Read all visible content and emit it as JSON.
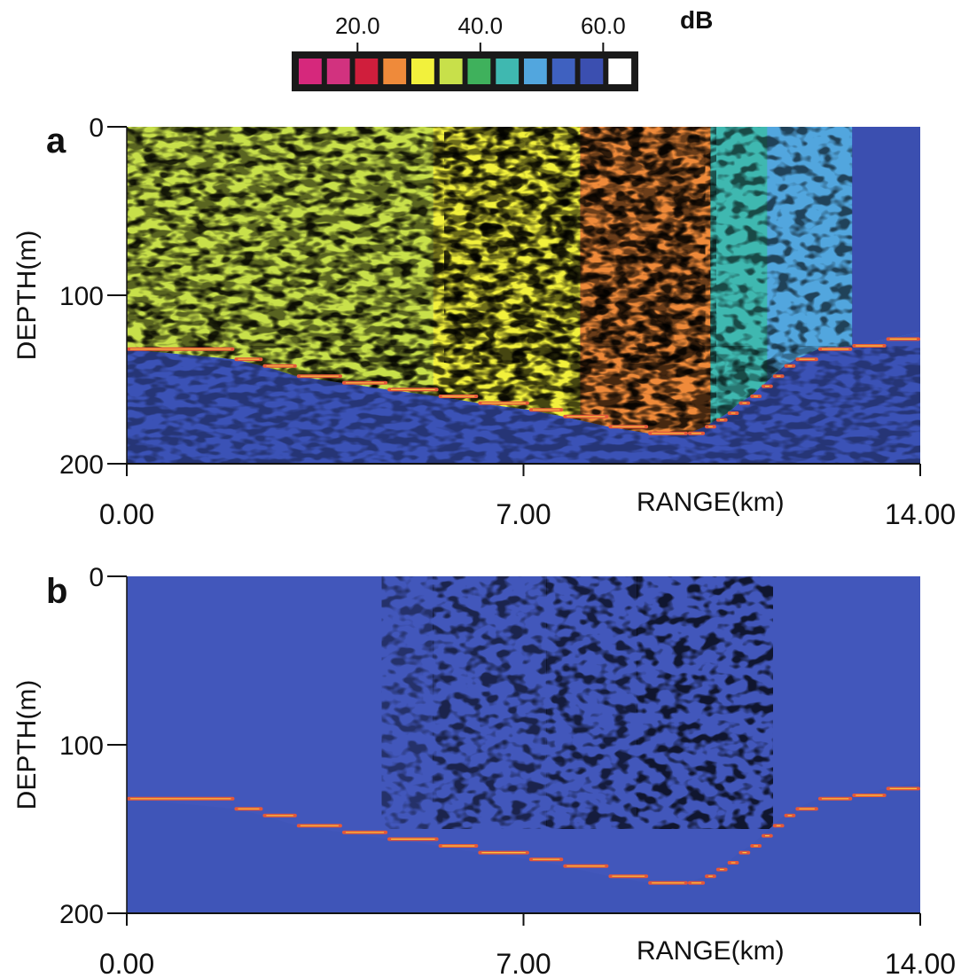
{
  "colorbar": {
    "unit": "dB",
    "tick_labels": [
      "20.0",
      "40.0",
      "60.0"
    ],
    "tick_values": [
      20,
      40,
      60
    ],
    "range": [
      10,
      65
    ],
    "swatches": [
      "#d6287c",
      "#d2327f",
      "#d01e3c",
      "#ef8a3a",
      "#f2f13c",
      "#c8e04a",
      "#3fb15c",
      "#3fb8b0",
      "#52a6de",
      "#3f61c0",
      "#3b4fb0",
      "#ffffff"
    ]
  },
  "chart_data": [
    {
      "type": "heatmap",
      "panel_label": "a",
      "xlabel": "RANGE(km)",
      "ylabel": "DEPTH(m)",
      "xlim": [
        0,
        14
      ],
      "ylim": [
        200,
        0
      ],
      "x_ticks": [
        "0.00",
        "7.00",
        "14.00"
      ],
      "y_ticks": [
        "0",
        "100",
        "200"
      ],
      "value_unit": "dB",
      "background_level_db": 55,
      "intensity_regions": [
        {
          "x": [
            0.0,
            1.8
          ],
          "level_db": 37
        },
        {
          "x": [
            1.8,
            5.4
          ],
          "level_db": 34
        },
        {
          "x": [
            5.4,
            8.0
          ],
          "level_db": 31
        },
        {
          "x": [
            8.0,
            10.3
          ],
          "level_db": 28
        },
        {
          "x": [
            10.3,
            11.3
          ],
          "level_db": 44
        },
        {
          "x": [
            11.3,
            12.8
          ],
          "level_db": 49
        },
        {
          "x": [
            12.8,
            13.2
          ],
          "level_db": 58
        }
      ],
      "bottom_profile": {
        "x": [
          0.0,
          1.9,
          2.4,
          3.0,
          3.8,
          4.6,
          5.5,
          6.2,
          7.1,
          7.7,
          8.5,
          9.2,
          9.9,
          10.2,
          10.4,
          10.6,
          10.8,
          11.0,
          11.2,
          11.4,
          11.6,
          11.8,
          12.2,
          12.8,
          13.4,
          14.0
        ],
        "depth": [
          132,
          138,
          142,
          148,
          152,
          156,
          160,
          164,
          168,
          172,
          178,
          182,
          182,
          178,
          174,
          170,
          164,
          160,
          154,
          148,
          142,
          138,
          132,
          130,
          126,
          122
        ]
      }
    },
    {
      "type": "heatmap",
      "panel_label": "b",
      "xlabel": "RANGE(km)",
      "ylabel": "DEPTH(m)",
      "xlim": [
        0,
        14
      ],
      "ylim": [
        200,
        0
      ],
      "x_ticks": [
        "0.00",
        "7.00",
        "14.00"
      ],
      "y_ticks": [
        "0",
        "100",
        "200"
      ],
      "value_unit": "dB",
      "background_level_db": 57,
      "intensity_regions": [
        {
          "x": [
            4.5,
            5.4
          ],
          "level_db": 54
        },
        {
          "x": [
            5.4,
            7.4
          ],
          "level_db": 52
        },
        {
          "x": [
            7.4,
            9.0
          ],
          "level_db": 51
        },
        {
          "x": [
            9.0,
            11.4
          ],
          "level_db": 50
        }
      ],
      "bottom_profile": {
        "x": [
          0.0,
          1.9,
          2.4,
          3.0,
          3.8,
          4.6,
          5.5,
          6.2,
          7.1,
          7.7,
          8.5,
          9.2,
          9.9,
          10.2,
          10.4,
          10.6,
          10.8,
          11.0,
          11.2,
          11.4,
          11.6,
          11.8,
          12.2,
          12.8,
          13.4,
          14.0
        ],
        "depth": [
          132,
          138,
          142,
          148,
          152,
          156,
          160,
          164,
          168,
          172,
          178,
          182,
          182,
          178,
          174,
          170,
          164,
          160,
          154,
          148,
          142,
          138,
          132,
          130,
          126,
          122
        ]
      }
    }
  ]
}
